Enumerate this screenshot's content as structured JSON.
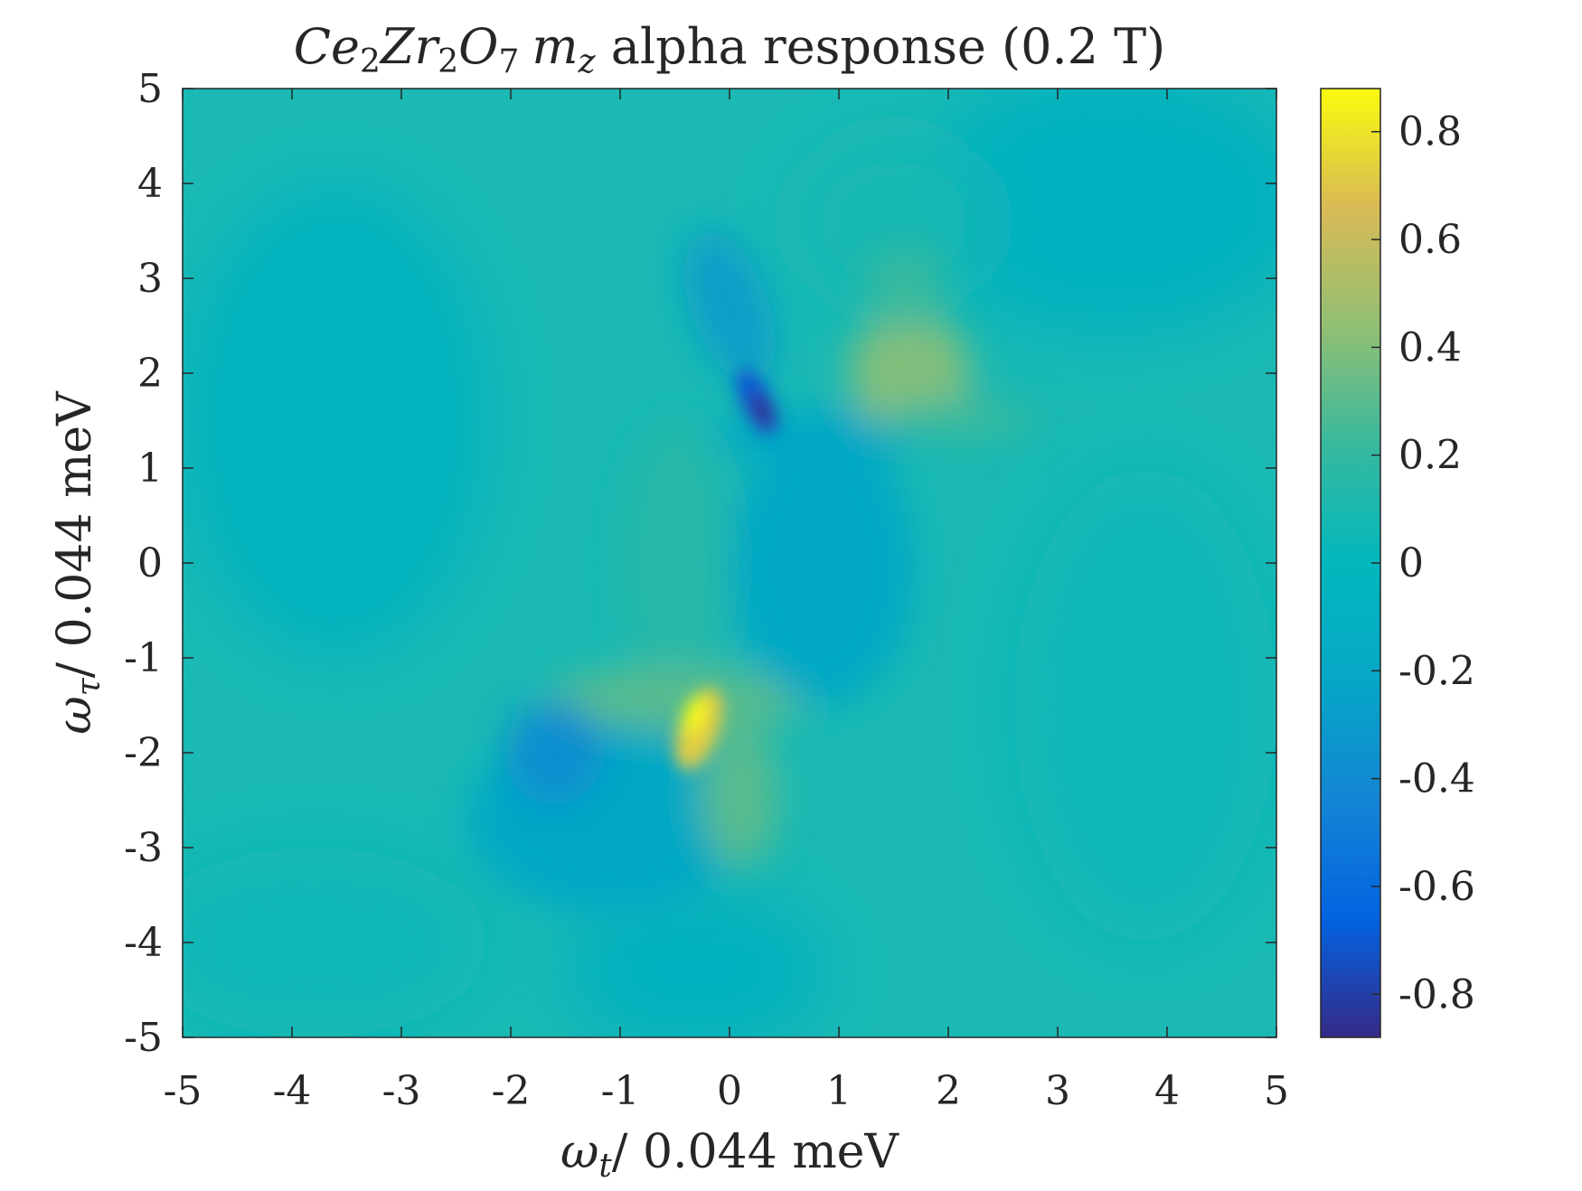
{
  "chart_data": {
    "type": "heatmap",
    "title": "Ce2Zr2O7 mz alpha response (0.2 T)",
    "title_parts": {
      "symbol": "Ce",
      "sub1": "2",
      "symbol2": "Zr",
      "sub2": "2",
      "symbol3": "O",
      "sub3": "7",
      "m": "m",
      "m_sub": "z",
      "rest": " alpha response (0.2 T)"
    },
    "xlabel": "ωt/ 0.044 meV",
    "xlabel_parts": {
      "sym": "ω",
      "sub": "t",
      "rest": "/ 0.044 meV"
    },
    "ylabel": "ωτ/ 0.044 meV",
    "ylabel_parts": {
      "sym": "ω",
      "sub": "τ",
      "rest": "/ 0.044 meV"
    },
    "xlim": [
      -5,
      5
    ],
    "ylim": [
      -5,
      5
    ],
    "xticks": [
      "-5",
      "-4",
      "-3",
      "-2",
      "-1",
      "0",
      "1",
      "2",
      "3",
      "4",
      "5"
    ],
    "yticks": [
      "-5",
      "-4",
      "-3",
      "-2",
      "-1",
      "0",
      "1",
      "2",
      "3",
      "4",
      "5"
    ],
    "colorbar": {
      "range": [
        -0.88,
        0.88
      ],
      "ticks": [
        "-0.8",
        "-0.6",
        "-0.4",
        "-0.2",
        "0",
        "0.2",
        "0.4",
        "0.6",
        "0.8"
      ],
      "colormap": "parula"
    },
    "features": [
      {
        "x": 0.3,
        "y": 1.65,
        "value": -0.88
      },
      {
        "x": 0.0,
        "y": 2.6,
        "value": -0.3
      },
      {
        "x": 1.7,
        "y": 1.9,
        "value": 0.42
      },
      {
        "x": -0.3,
        "y": -1.7,
        "value": 0.88
      },
      {
        "x": 0.1,
        "y": -2.2,
        "value": 0.3
      },
      {
        "x": -1.7,
        "y": -2.0,
        "value": -0.38
      },
      {
        "x": 0.7,
        "y": 0.0,
        "value": -0.2
      },
      {
        "x": -0.5,
        "y": 0.2,
        "value": 0.18
      }
    ]
  }
}
